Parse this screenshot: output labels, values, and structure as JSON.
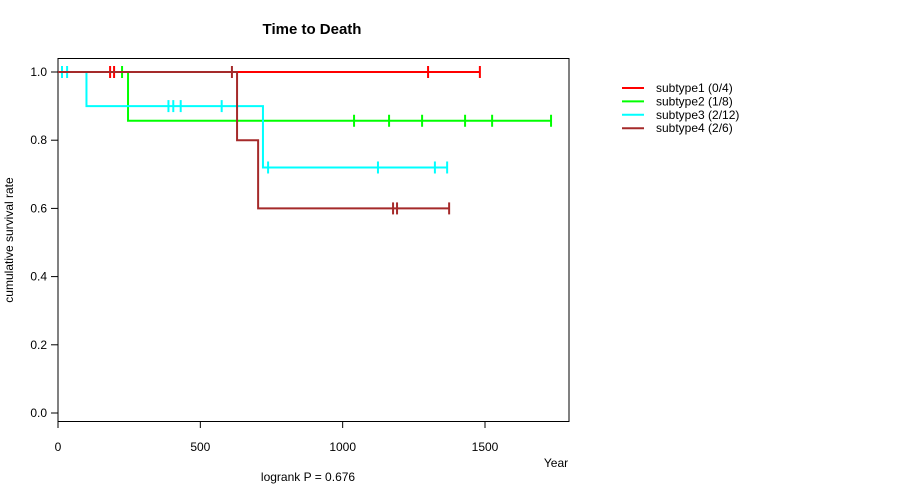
{
  "chart_data": {
    "type": "line",
    "variant": "kaplan-meier-step",
    "title": "Time to Death",
    "xlabel": "Year",
    "ylabel": "cumulative survival rate",
    "footnote": "logrank P = 0.676",
    "xlim": [
      0,
      1795
    ],
    "ylim": [
      0.0,
      1.0
    ],
    "xticks": [
      0,
      500,
      1000,
      1500
    ],
    "yticks": [
      0.0,
      0.2,
      0.4,
      0.6,
      0.8,
      1.0
    ],
    "grid": false,
    "legend_position": "right-outside",
    "axis_color": "#000000",
    "series": [
      {
        "name": "subtype1 (0/4)",
        "color": "#ff0000",
        "steps": [
          [
            0,
            1.0
          ],
          [
            1482,
            1.0
          ]
        ],
        "censors": [
          [
            183,
            1.0
          ],
          [
            197,
            1.0
          ],
          [
            1300,
            1.0
          ],
          [
            1482,
            1.0
          ]
        ]
      },
      {
        "name": "subtype2 (1/8)",
        "color": "#00ff00",
        "steps": [
          [
            0,
            1.0
          ],
          [
            246,
            1.0
          ],
          [
            246,
            0.857
          ],
          [
            1732,
            0.857
          ]
        ],
        "censors": [
          [
            225,
            1.0
          ],
          [
            1040,
            0.857
          ],
          [
            1163,
            0.857
          ],
          [
            1279,
            0.857
          ],
          [
            1430,
            0.857
          ],
          [
            1525,
            0.857
          ],
          [
            1732,
            0.857
          ]
        ]
      },
      {
        "name": "subtype3 (2/12)",
        "color": "#00ffff",
        "steps": [
          [
            0,
            1.0
          ],
          [
            100,
            1.0
          ],
          [
            100,
            0.9
          ],
          [
            720,
            0.9
          ],
          [
            720,
            0.72
          ],
          [
            1367,
            0.72
          ]
        ],
        "censors": [
          [
            14,
            1.0
          ],
          [
            32,
            1.0
          ],
          [
            388,
            0.9
          ],
          [
            405,
            0.9
          ],
          [
            431,
            0.9
          ],
          [
            575,
            0.9
          ],
          [
            738,
            0.72
          ],
          [
            1124,
            0.72
          ],
          [
            1324,
            0.72
          ],
          [
            1367,
            0.72
          ]
        ]
      },
      {
        "name": "subtype4 (2/6)",
        "color": "#a52a2a",
        "steps": [
          [
            0,
            1.0
          ],
          [
            629,
            1.0
          ],
          [
            629,
            0.8
          ],
          [
            703,
            0.8
          ],
          [
            703,
            0.6
          ],
          [
            1374,
            0.6
          ]
        ],
        "censors": [
          [
            611,
            1.0
          ],
          [
            1177,
            0.6
          ],
          [
            1191,
            0.6
          ],
          [
            1374,
            0.6
          ]
        ]
      }
    ]
  }
}
